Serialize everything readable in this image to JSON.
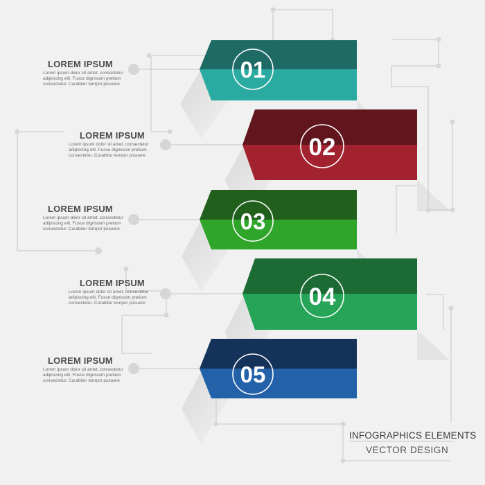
{
  "items": [
    {
      "number": "01",
      "title": "LOREM IPSUM",
      "text": "Lorem ipsum dolor sit amet, consectetur adipiscing elit. Fusce dignissim pretium consectetur. Curabitur tempor posuere",
      "top_color": "#1e6b66",
      "bottom_color": "#2aaaa0"
    },
    {
      "number": "02",
      "title": "LOREM IPSUM",
      "text": "Lorem ipsum dolor sit amet, consectetur adipiscing elit. Fusce dignissim pretium consectetur. Curabitur tempor posuere",
      "top_color": "#61161e",
      "bottom_color": "#a3222f"
    },
    {
      "number": "03",
      "title": "LOREM IPSUM",
      "text": "Lorem ipsum dolor sit amet, consectetur adipiscing elit. Fusce dignissim pretium consectetur. Curabitur tempor posuere",
      "top_color": "#215f1d",
      "bottom_color": "#2fa52a"
    },
    {
      "number": "04",
      "title": "LOREM IPSUM",
      "text": "Lorem ipsum dolor sit amet, consectetur adipiscing elit. Fusce dignissim pretium consectetur. Curabitur tempor posuere",
      "top_color": "#1d6b34",
      "bottom_color": "#26a457"
    },
    {
      "number": "05",
      "title": "LOREM IPSUM",
      "text": "Lorem ipsum dolor sit amet, consectetur adipiscing elit. Fusce dignissim pretium consectetur. Curabitur tempor posuere",
      "top_color": "#15335a",
      "bottom_color": "#2361a8"
    }
  ],
  "footer": {
    "title": "INFOGRAPHICS ELEMENTS",
    "subtitle": "VECTOR DESIGN"
  },
  "colors": {
    "background": "#f1f1f1",
    "line": "#cfcfcf",
    "dot": "#d6d6d6"
  }
}
